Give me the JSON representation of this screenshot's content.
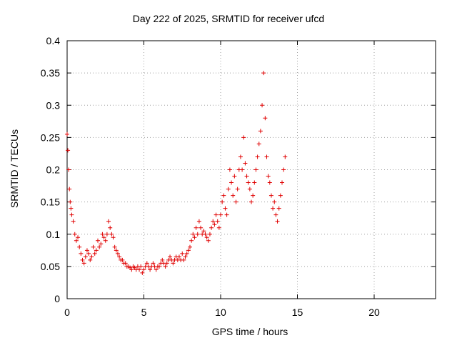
{
  "chart_data": {
    "type": "scatter",
    "title": "Day 222 of 2025, SRMTID for receiver ufcd",
    "xlabel": "GPS time / hours",
    "ylabel": "SRMTID / TECUs",
    "xlim": [
      0,
      24
    ],
    "ylim": [
      0,
      0.4
    ],
    "xticks": [
      0,
      5,
      10,
      15,
      20
    ],
    "yticks": [
      0,
      0.05,
      0.1,
      0.15,
      0.2,
      0.25,
      0.3,
      0.35,
      0.4
    ],
    "xtick_labels": [
      "0",
      "5",
      "10",
      "15",
      "20"
    ],
    "ytick_labels": [
      "0",
      "0.05",
      "0.1",
      "0.15",
      "0.2",
      "0.25",
      "0.3",
      "0.35",
      "0.4"
    ],
    "grid": true,
    "marker": "plus",
    "colors": {
      "points": "#e00000",
      "grid": "#a0a0a0",
      "axis": "#000000"
    },
    "series": [
      {
        "x": [
          0.0,
          0.05,
          0.1,
          0.15,
          0.2,
          0.25,
          0.3,
          0.4,
          0.5,
          0.6,
          0.7,
          0.8,
          0.9,
          1.0,
          1.1,
          1.2,
          1.3,
          1.4,
          1.5,
          1.6,
          1.7,
          1.8,
          1.9,
          2.0,
          2.1,
          2.2,
          2.3,
          2.4,
          2.5,
          2.6,
          2.7,
          2.8,
          2.9,
          3.0,
          3.1,
          3.2,
          3.3,
          3.4,
          3.5,
          3.6,
          3.7,
          3.8,
          3.9,
          4.0,
          4.1,
          4.2,
          4.3,
          4.4,
          4.5,
          4.6,
          4.7,
          4.8,
          4.9,
          5.0,
          5.1,
          5.2,
          5.3,
          5.4,
          5.5,
          5.6,
          5.7,
          5.8,
          5.9,
          6.0,
          6.1,
          6.2,
          6.3,
          6.4,
          6.5,
          6.6,
          6.7,
          6.8,
          6.9,
          7.0,
          7.1,
          7.2,
          7.3,
          7.4,
          7.5,
          7.6,
          7.7,
          7.8,
          7.9,
          8.0,
          8.1,
          8.2,
          8.3,
          8.4,
          8.5,
          8.6,
          8.7,
          8.8,
          8.9,
          9.0,
          9.1,
          9.2,
          9.3,
          9.4,
          9.5,
          9.6,
          9.7,
          9.8,
          9.9,
          10.0,
          10.1,
          10.2,
          10.3,
          10.4,
          10.5,
          10.6,
          10.7,
          10.8,
          10.9,
          11.0,
          11.1,
          11.2,
          11.3,
          11.4,
          11.5,
          11.6,
          11.7,
          11.8,
          11.9,
          12.0,
          12.1,
          12.2,
          12.3,
          12.4,
          12.5,
          12.6,
          12.7,
          12.8,
          12.9,
          13.0,
          13.1,
          13.2,
          13.3,
          13.4,
          13.5,
          13.6,
          13.7,
          13.8,
          13.9,
          14.0,
          14.1,
          14.2
        ],
        "y": [
          0.255,
          0.23,
          0.2,
          0.17,
          0.15,
          0.14,
          0.13,
          0.12,
          0.1,
          0.09,
          0.095,
          0.08,
          0.07,
          0.06,
          0.055,
          0.065,
          0.075,
          0.07,
          0.06,
          0.065,
          0.08,
          0.07,
          0.075,
          0.09,
          0.08,
          0.085,
          0.1,
          0.095,
          0.09,
          0.1,
          0.12,
          0.11,
          0.1,
          0.095,
          0.08,
          0.075,
          0.07,
          0.065,
          0.06,
          0.06,
          0.055,
          0.055,
          0.05,
          0.05,
          0.048,
          0.045,
          0.05,
          0.048,
          0.045,
          0.05,
          0.045,
          0.05,
          0.04,
          0.045,
          0.05,
          0.055,
          0.05,
          0.045,
          0.05,
          0.055,
          0.05,
          0.045,
          0.05,
          0.05,
          0.055,
          0.06,
          0.055,
          0.05,
          0.055,
          0.06,
          0.065,
          0.06,
          0.055,
          0.06,
          0.065,
          0.06,
          0.065,
          0.06,
          0.07,
          0.06,
          0.065,
          0.07,
          0.075,
          0.08,
          0.09,
          0.1,
          0.095,
          0.11,
          0.1,
          0.12,
          0.11,
          0.1,
          0.105,
          0.1,
          0.095,
          0.09,
          0.1,
          0.11,
          0.12,
          0.115,
          0.13,
          0.12,
          0.11,
          0.13,
          0.15,
          0.16,
          0.14,
          0.13,
          0.17,
          0.2,
          0.18,
          0.16,
          0.19,
          0.15,
          0.17,
          0.2,
          0.22,
          0.2,
          0.25,
          0.21,
          0.19,
          0.18,
          0.17,
          0.15,
          0.16,
          0.18,
          0.2,
          0.22,
          0.24,
          0.26,
          0.3,
          0.35,
          0.28,
          0.22,
          0.19,
          0.18,
          0.16,
          0.14,
          0.15,
          0.13,
          0.12,
          0.14,
          0.16,
          0.18,
          0.2,
          0.22
        ]
      }
    ]
  }
}
